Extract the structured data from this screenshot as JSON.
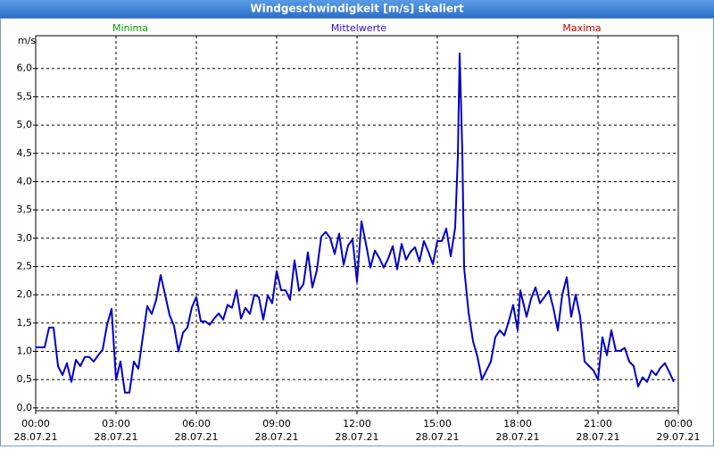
{
  "chart_data": {
    "type": "line",
    "title": "Windgeschwindigkeit [m/s] skaliert",
    "y_label": "m/s",
    "legend": [
      {
        "name": "Minima",
        "color": "#00a000"
      },
      {
        "name": "Mittelwerte",
        "color": "#3010d0"
      },
      {
        "name": "Maxima",
        "color": "#c00000"
      }
    ],
    "color": "#0000c8",
    "x": [
      0,
      10,
      20,
      30,
      40,
      50,
      60,
      70,
      80,
      90,
      100,
      110,
      120,
      130,
      140,
      150,
      160,
      170,
      180,
      190,
      200,
      210,
      220,
      230,
      240,
      250,
      260,
      270,
      280,
      290,
      300,
      310,
      320,
      330,
      340,
      350,
      360,
      370,
      380,
      390,
      400,
      410,
      420,
      430,
      440,
      450,
      460,
      470,
      480,
      490,
      500,
      510,
      520,
      530,
      540,
      550,
      560,
      570,
      580,
      590,
      600,
      610,
      620,
      630,
      640,
      650,
      660,
      670,
      680,
      690,
      700,
      710,
      720,
      730,
      740,
      750,
      760,
      770,
      780,
      790,
      800,
      810,
      820,
      830,
      840,
      850,
      860,
      870,
      880,
      890,
      900,
      910,
      920,
      930,
      940,
      946,
      950,
      956,
      960,
      970,
      980,
      990,
      1000,
      1010,
      1020,
      1030,
      1040,
      1050,
      1060,
      1070,
      1080,
      1086,
      1100,
      1110,
      1120,
      1130,
      1140,
      1150,
      1160,
      1170,
      1180,
      1190,
      1200,
      1210,
      1220,
      1230,
      1240,
      1250,
      1260,
      1270,
      1280,
      1290,
      1300,
      1310,
      1320,
      1330,
      1340,
      1350,
      1360,
      1370,
      1380,
      1390,
      1400,
      1410,
      1420,
      1430
    ],
    "values": [
      1.07,
      1.07,
      1.07,
      1.42,
      1.42,
      0.74,
      0.58,
      0.79,
      0.46,
      0.85,
      0.74,
      0.9,
      0.9,
      0.82,
      0.93,
      1.03,
      1.47,
      1.75,
      0.5,
      0.82,
      0.27,
      0.27,
      0.82,
      0.69,
      1.25,
      1.8,
      1.66,
      1.91,
      2.35,
      2.0,
      1.64,
      1.45,
      1.0,
      1.33,
      1.42,
      1.78,
      1.96,
      1.53,
      1.53,
      1.47,
      1.58,
      1.67,
      1.56,
      1.82,
      1.77,
      2.08,
      1.58,
      1.77,
      1.66,
      2.0,
      1.96,
      1.56,
      1.99,
      1.85,
      2.42,
      2.08,
      2.08,
      1.91,
      2.61,
      2.07,
      2.19,
      2.75,
      2.13,
      2.43,
      3.03,
      3.11,
      3.0,
      2.72,
      3.08,
      2.53,
      2.87,
      2.98,
      2.23,
      3.3,
      2.9,
      2.48,
      2.78,
      2.65,
      2.48,
      2.64,
      2.86,
      2.45,
      2.9,
      2.62,
      2.76,
      2.84,
      2.59,
      2.95,
      2.76,
      2.54,
      2.95,
      2.95,
      3.17,
      2.68,
      3.19,
      4.45,
      6.27,
      4.53,
      2.48,
      1.69,
      1.18,
      0.9,
      0.5,
      0.66,
      0.82,
      1.25,
      1.37,
      1.28,
      1.53,
      1.82,
      1.37,
      2.08,
      1.61,
      1.93,
      2.13,
      1.85,
      1.96,
      2.07,
      1.77,
      1.37,
      2.0,
      2.31,
      1.61,
      2.0,
      1.61,
      0.82,
      0.74,
      0.66,
      0.5,
      1.25,
      0.93,
      1.37,
      1.01,
      1.01,
      1.06,
      0.82,
      0.74,
      0.38,
      0.54,
      0.46,
      0.66,
      0.58,
      0.71,
      0.79,
      0.63,
      0.46
    ],
    "xlim": [
      0,
      1440
    ],
    "xticks": [
      {
        "value": 0,
        "label": "00:00"
      },
      {
        "value": 180,
        "label": "03:00"
      },
      {
        "value": 360,
        "label": "06:00"
      },
      {
        "value": 540,
        "label": "09:00"
      },
      {
        "value": 720,
        "label": "12:00"
      },
      {
        "value": 900,
        "label": "15:00"
      },
      {
        "value": 1080,
        "label": "18:00"
      },
      {
        "value": 1260,
        "label": "21:00"
      },
      {
        "value": 1440,
        "label": "00:00"
      }
    ],
    "xtick_dates": [
      "28.07.21",
      "28.07.21",
      "28.07.21",
      "28.07.21",
      "28.07.21",
      "28.07.21",
      "28.07.21",
      "28.07.21",
      "29.07.21"
    ],
    "ylim": [
      -0.05,
      6.58
    ],
    "yticks": [
      {
        "value": 0,
        "label": "0,0"
      },
      {
        "value": 0.5,
        "label": "0,5"
      },
      {
        "value": 1,
        "label": "1,0"
      },
      {
        "value": 1.5,
        "label": "1,5"
      },
      {
        "value": 2,
        "label": "2,0"
      },
      {
        "value": 2.5,
        "label": "2,5"
      },
      {
        "value": 3,
        "label": "3,0"
      },
      {
        "value": 3.5,
        "label": "3,5"
      },
      {
        "value": 4,
        "label": "4,0"
      },
      {
        "value": 4.5,
        "label": "4,5"
      },
      {
        "value": 5,
        "label": "5,0"
      },
      {
        "value": 5.5,
        "label": "5,5"
      },
      {
        "value": 6,
        "label": "6,0"
      }
    ],
    "grid": true
  }
}
